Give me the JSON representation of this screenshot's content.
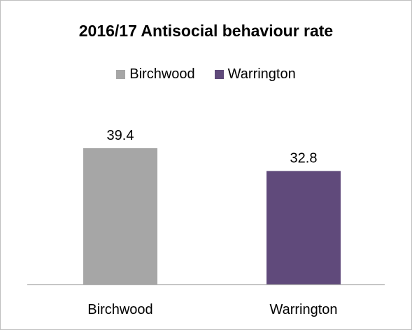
{
  "chart_data": {
    "type": "bar",
    "title": "2016/17 Antisocial behaviour rate",
    "categories": [
      "Birchwood",
      "Warrington"
    ],
    "values": [
      39.4,
      32.8
    ],
    "colors": [
      "#a6a6a6",
      "#604a7b"
    ],
    "legend": [
      {
        "label": "Birchwood",
        "color": "#a6a6a6"
      },
      {
        "label": "Warrington",
        "color": "#604a7b"
      }
    ],
    "legend_position": "top",
    "ylim": [
      0,
      45
    ],
    "grid": false,
    "data_labels": [
      "39.4",
      "32.8"
    ]
  }
}
